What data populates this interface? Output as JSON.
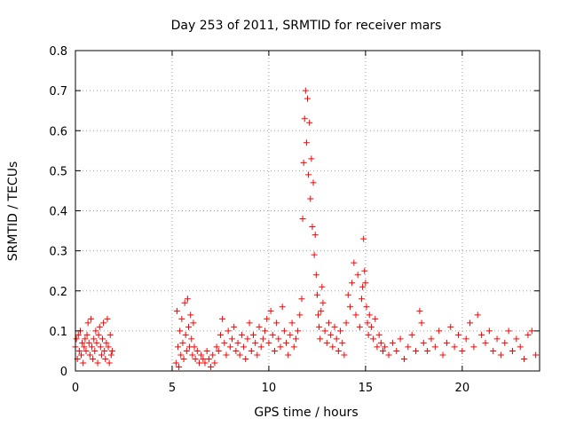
{
  "chart_data": {
    "type": "scatter",
    "title": "Day 253 of 2011, SRMTID for receiver mars",
    "xlabel": "GPS time / hours",
    "ylabel": "SRMTID / TECUs",
    "xlim": [
      0,
      24
    ],
    "ylim": [
      0,
      0.8
    ],
    "xticks": [
      0,
      5,
      10,
      15,
      20
    ],
    "xtick_labels": [
      "0",
      "5",
      "10",
      "15",
      "20"
    ],
    "yticks": [
      0,
      0.1,
      0.2,
      0.3,
      0.4,
      0.5,
      0.6,
      0.7,
      0.8
    ],
    "ytick_labels": [
      "0",
      "0.1",
      "0.2",
      "0.3",
      "0.4",
      "0.5",
      "0.6",
      "0.7",
      "0.8"
    ],
    "grid": true,
    "marker": "+",
    "color": "#ff0000",
    "series": [
      {
        "name": "SRMTID",
        "x": [
          0.0,
          0.05,
          0.1,
          0.15,
          0.2,
          0.25,
          0.3,
          0.35,
          0.4,
          0.45,
          0.5,
          0.55,
          0.6,
          0.65,
          0.7,
          0.75,
          0.8,
          0.85,
          0.9,
          0.95,
          1.0,
          1.05,
          1.1,
          1.15,
          1.2,
          1.25,
          1.3,
          1.35,
          1.4,
          1.45,
          1.5,
          1.55,
          1.6,
          1.65,
          1.7,
          1.75,
          1.8,
          1.85,
          1.9,
          5.2,
          5.25,
          5.3,
          5.35,
          5.4,
          5.45,
          5.5,
          5.55,
          5.6,
          5.65,
          5.7,
          5.75,
          5.8,
          5.85,
          5.9,
          5.95,
          6.0,
          6.05,
          6.1,
          6.15,
          6.2,
          6.3,
          6.4,
          6.5,
          6.6,
          6.7,
          6.8,
          6.9,
          7.0,
          7.1,
          7.2,
          7.3,
          7.4,
          7.5,
          7.6,
          7.7,
          7.8,
          7.9,
          8.0,
          8.1,
          8.2,
          8.3,
          8.4,
          8.5,
          8.6,
          8.7,
          8.8,
          8.9,
          9.0,
          9.1,
          9.2,
          9.3,
          9.4,
          9.5,
          9.6,
          9.7,
          9.8,
          9.9,
          10.0,
          10.1,
          10.2,
          10.3,
          10.4,
          10.5,
          10.6,
          10.7,
          10.8,
          10.9,
          11.0,
          11.1,
          11.2,
          11.3,
          11.4,
          11.5,
          11.6,
          11.7,
          11.75,
          11.8,
          11.85,
          11.9,
          11.95,
          12.0,
          12.05,
          12.1,
          12.15,
          12.2,
          12.25,
          12.3,
          12.35,
          12.4,
          12.45,
          12.5,
          12.55,
          12.6,
          12.65,
          12.7,
          12.75,
          12.8,
          12.9,
          13.0,
          13.1,
          13.2,
          13.3,
          13.4,
          13.5,
          13.6,
          13.7,
          13.8,
          13.9,
          14.0,
          14.1,
          14.2,
          14.3,
          14.4,
          14.5,
          14.6,
          14.7,
          14.8,
          14.85,
          14.9,
          14.95,
          15.0,
          15.05,
          15.1,
          15.15,
          15.2,
          15.3,
          15.4,
          15.5,
          15.6,
          15.7,
          15.8,
          15.9,
          16.0,
          16.2,
          16.4,
          16.6,
          16.8,
          17.0,
          17.2,
          17.4,
          17.6,
          17.8,
          17.9,
          18.0,
          18.2,
          18.4,
          18.6,
          18.8,
          19.0,
          19.2,
          19.4,
          19.6,
          19.8,
          20.0,
          20.2,
          20.4,
          20.6,
          20.8,
          21.0,
          21.2,
          21.4,
          21.6,
          21.8,
          22.0,
          22.2,
          22.4,
          22.6,
          22.8,
          23.0,
          23.2,
          23.4,
          23.6,
          23.8
        ],
        "y": [
          0.06,
          0.08,
          0.03,
          0.09,
          0.05,
          0.1,
          0.04,
          0.07,
          0.02,
          0.06,
          0.08,
          0.05,
          0.09,
          0.12,
          0.07,
          0.04,
          0.13,
          0.06,
          0.03,
          0.08,
          0.05,
          0.1,
          0.07,
          0.02,
          0.09,
          0.11,
          0.06,
          0.04,
          0.08,
          0.12,
          0.05,
          0.03,
          0.07,
          0.13,
          0.06,
          0.02,
          0.09,
          0.04,
          0.05,
          0.02,
          0.15,
          0.06,
          0.01,
          0.1,
          0.04,
          0.13,
          0.07,
          0.03,
          0.17,
          0.09,
          0.05,
          0.18,
          0.11,
          0.06,
          0.14,
          0.08,
          0.04,
          0.12,
          0.06,
          0.03,
          0.05,
          0.02,
          0.04,
          0.03,
          0.02,
          0.05,
          0.03,
          0.01,
          0.04,
          0.02,
          0.06,
          0.05,
          0.09,
          0.13,
          0.07,
          0.04,
          0.1,
          0.06,
          0.08,
          0.11,
          0.05,
          0.07,
          0.04,
          0.09,
          0.06,
          0.03,
          0.08,
          0.12,
          0.05,
          0.09,
          0.07,
          0.04,
          0.11,
          0.06,
          0.08,
          0.1,
          0.13,
          0.07,
          0.15,
          0.09,
          0.05,
          0.12,
          0.08,
          0.06,
          0.16,
          0.1,
          0.07,
          0.04,
          0.09,
          0.12,
          0.06,
          0.08,
          0.1,
          0.14,
          0.18,
          0.38,
          0.52,
          0.63,
          0.7,
          0.57,
          0.68,
          0.49,
          0.62,
          0.43,
          0.53,
          0.36,
          0.47,
          0.29,
          0.34,
          0.24,
          0.19,
          0.14,
          0.11,
          0.08,
          0.15,
          0.21,
          0.17,
          0.1,
          0.07,
          0.12,
          0.09,
          0.06,
          0.11,
          0.08,
          0.05,
          0.1,
          0.07,
          0.04,
          0.12,
          0.19,
          0.16,
          0.22,
          0.27,
          0.14,
          0.24,
          0.11,
          0.18,
          0.21,
          0.33,
          0.25,
          0.22,
          0.16,
          0.12,
          0.09,
          0.14,
          0.11,
          0.08,
          0.13,
          0.06,
          0.09,
          0.07,
          0.05,
          0.06,
          0.04,
          0.07,
          0.05,
          0.08,
          0.03,
          0.06,
          0.09,
          0.05,
          0.15,
          0.12,
          0.07,
          0.05,
          0.08,
          0.06,
          0.1,
          0.04,
          0.07,
          0.11,
          0.06,
          0.09,
          0.05,
          0.08,
          0.12,
          0.06,
          0.14,
          0.09,
          0.07,
          0.1,
          0.05,
          0.08,
          0.04,
          0.07,
          0.1,
          0.05,
          0.08,
          0.06,
          0.03,
          0.09,
          0.1,
          0.04
        ]
      }
    ]
  }
}
